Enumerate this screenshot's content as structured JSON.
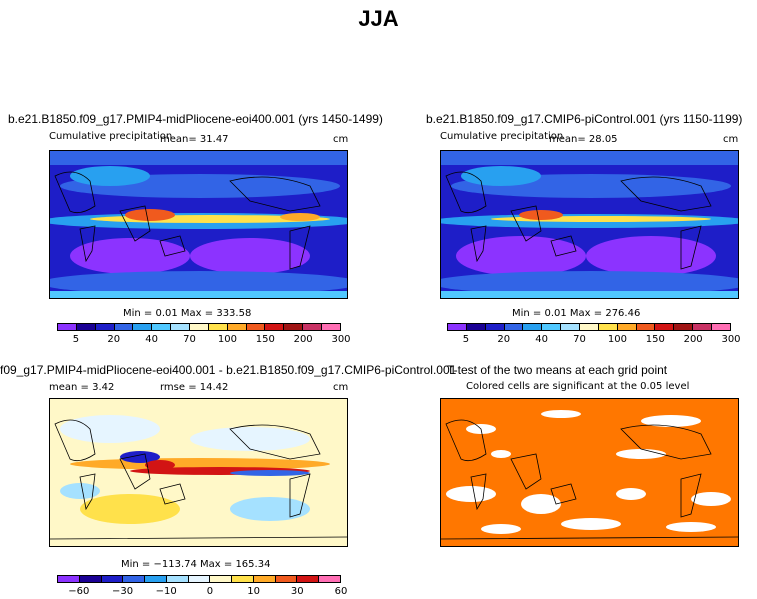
{
  "page_title": "JJA",
  "panels": [
    {
      "title": "b.e21.B1850.f09_g17.PMIP4-midPliocene-eoi400.001 (yrs 1450-1499)",
      "variable": "Cumulative precipitation",
      "mean": "mean=   31.47",
      "units": "cm",
      "minmax": "Min =    0.01  Max = 333.58",
      "colorbar_labels": [
        "5",
        "20",
        "40",
        "70",
        "100",
        "150",
        "200",
        "300"
      ]
    },
    {
      "title": "b.e21.B1850.f09_g17.CMIP6-piControl.001 (yrs 1150-1199)",
      "variable": "Cumulative precipitation",
      "mean": "mean=   28.05",
      "units": "cm",
      "minmax": "Min =    0.01  Max = 276.46",
      "colorbar_labels": [
        "5",
        "20",
        "40",
        "70",
        "100",
        "150",
        "200",
        "300"
      ]
    },
    {
      "title": "f09_g17.PMIP4-midPliocene-eoi400.001 - b.e21.B1850.f09_g17.CMIP6-piControl.001",
      "mean": "mean =    3.42",
      "rmse": "rmse =   14.42",
      "units": "cm",
      "minmax": "Min = −113.74  Max = 165.34",
      "colorbar_labels": [
        "−60",
        "−30",
        "−10",
        "0",
        "10",
        "30",
        "60"
      ]
    },
    {
      "title": "T-test of the two means at each grid point",
      "subtitle": "Colored cells are significant at the 0.05 level"
    }
  ],
  "colors": {
    "precip_scale": [
      "#8c33ff",
      "#1a0094",
      "#1e1ec8",
      "#3264e6",
      "#28a0f0",
      "#50c8ff",
      "#a5e1ff",
      "#fff8c8",
      "#ffe14b",
      "#ffaa28",
      "#f05a1e",
      "#d21414",
      "#a01414",
      "#c83264",
      "#ff6eb4"
    ],
    "diff_scale": [
      "#8c33ff",
      "#1a0094",
      "#1e1ec8",
      "#3264e6",
      "#28a0f0",
      "#a5e1ff",
      "#e6f5ff",
      "#fff8c8",
      "#ffe14b",
      "#ffaa28",
      "#f05a1e",
      "#d21414",
      "#ff6eb4"
    ],
    "ttest_fill": "#ff7700",
    "ttest_nonsig": "#ffffff"
  }
}
